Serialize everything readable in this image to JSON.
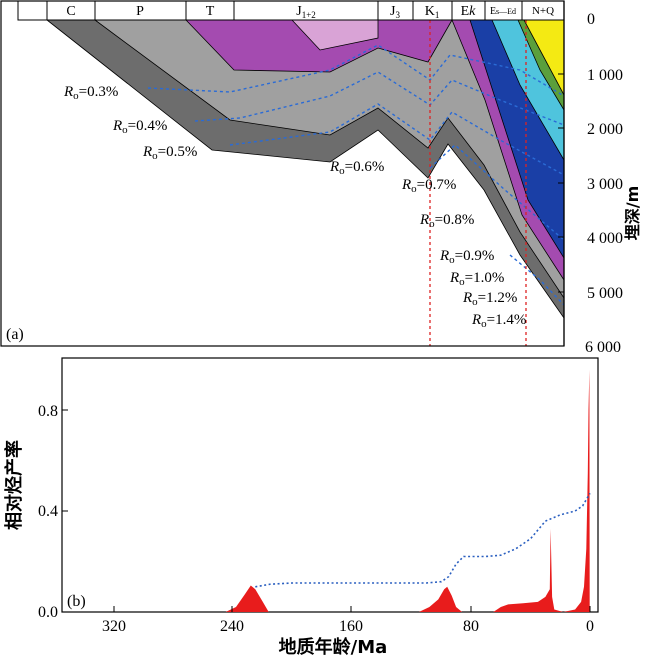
{
  "panel_a": {
    "tag": "(a)",
    "strata": [
      "C",
      "P",
      "T",
      "J",
      "J",
      "K",
      "E",
      "E",
      "N+Q"
    ],
    "strata_sub": [
      "",
      "",
      "",
      "1+2",
      "3",
      "1",
      "k",
      "s—Ed",
      ""
    ],
    "depth_ticks": [
      "0",
      "1 000",
      "2 000",
      "3 000",
      "4 000",
      "5 000",
      "6 000"
    ],
    "depth_title": "埋深/m",
    "ro_prefix": "R",
    "ro_sub": "o",
    "ro_values": [
      "=0.3%",
      "=0.4%",
      "=0.5%",
      "=0.6%",
      "=0.7%",
      "=0.8%",
      "=0.9%",
      "=1.0%",
      "=1.2%",
      "=1.4%"
    ],
    "colors": {
      "dark_gray": "#6d6d6d",
      "mid_gray": "#a0a0a0",
      "magenta": "#a44bb0",
      "pink": "#d9a3d6",
      "dark_blue": "#1a3fa6",
      "cyan": "#4fc4dd",
      "green": "#5b9f3c",
      "yellow": "#f4ea13",
      "ro_line": "#2a6bd6",
      "marker": "#dd2222"
    }
  },
  "panel_b": {
    "tag": "(b)",
    "y_title": "相对烃产率",
    "x_title": "地质年龄/Ma",
    "x_ticks": [
      "320",
      "240",
      "160",
      "80",
      "0"
    ],
    "y_ticks": [
      "0.0",
      "0.4",
      "0.8"
    ],
    "colors": {
      "peak_fill": "#e81c1c",
      "cumulative": "#2a5fc0"
    }
  },
  "chart_data": {
    "type": "area",
    "title": "",
    "xlabel": "地质年龄/Ma",
    "ylabel": "相对烃产率",
    "xlim": [
      360,
      0
    ],
    "ylim": [
      0,
      1.0
    ],
    "series": [
      {
        "name": "relative hydrocarbon generation rate",
        "style": "filled",
        "x": [
          245,
          238,
          232,
          228,
          225,
          220,
          216,
          115,
          108,
          102,
          98,
          96,
          93,
          90,
          86,
          65,
          60,
          55,
          45,
          35,
          30,
          27,
          26.5,
          25.5,
          24,
          18,
          10,
          6,
          4,
          2.5,
          1.5,
          1,
          0.4,
          0.2
        ],
        "y": [
          0.0,
          0.02,
          0.07,
          0.105,
          0.09,
          0.04,
          0.0,
          0.0,
          0.02,
          0.05,
          0.09,
          0.1,
          0.065,
          0.02,
          0.0,
          0.0,
          0.02,
          0.03,
          0.035,
          0.04,
          0.06,
          0.09,
          0.33,
          0.06,
          0.01,
          0.0,
          0.01,
          0.04,
          0.1,
          0.25,
          0.55,
          0.8,
          0.96,
          0.0
        ]
      },
      {
        "name": "cumulative trend",
        "style": "dotted",
        "x": [
          225,
          215,
          200,
          180,
          150,
          110,
          100,
          95,
          90,
          85,
          70,
          60,
          50,
          40,
          30,
          20,
          10,
          5,
          0
        ],
        "y": [
          0.1,
          0.11,
          0.115,
          0.115,
          0.115,
          0.115,
          0.12,
          0.14,
          0.19,
          0.22,
          0.22,
          0.225,
          0.25,
          0.29,
          0.36,
          0.385,
          0.4,
          0.42,
          0.47
        ]
      }
    ]
  }
}
